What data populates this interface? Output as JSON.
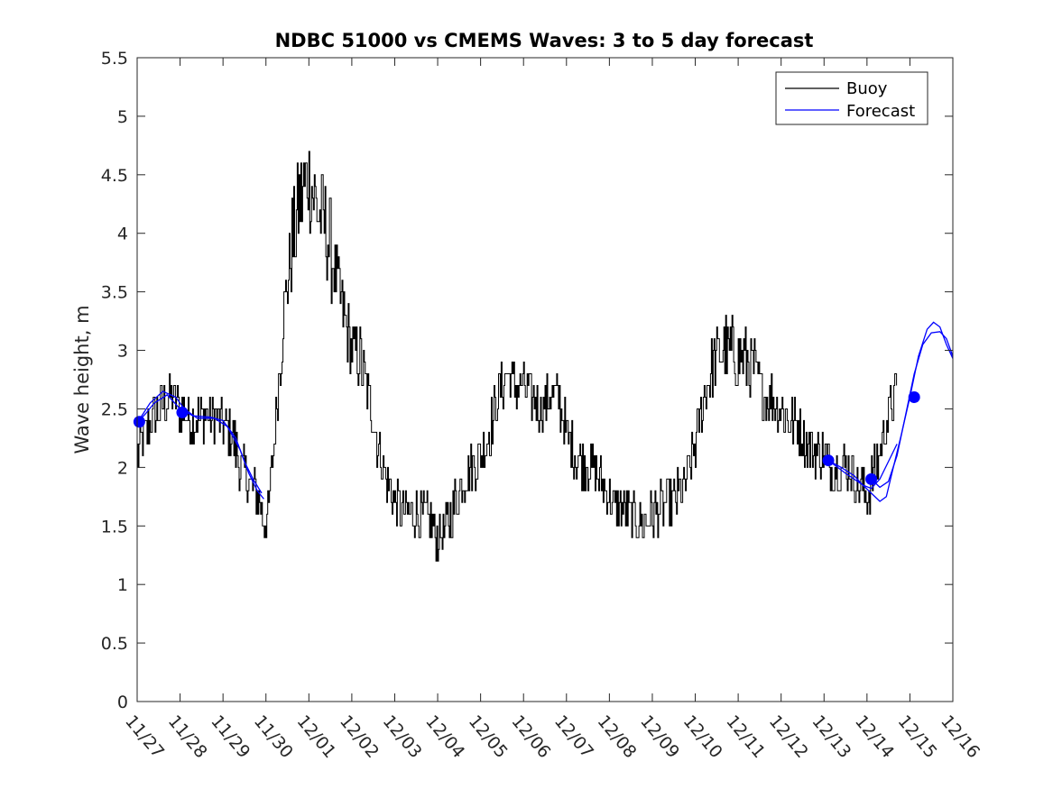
{
  "chart_data": {
    "type": "line",
    "title": "NDBC 51000 vs CMEMS Waves: 3 to 5 day forecast",
    "xlabel": "",
    "ylabel": "Wave height, m",
    "xlim": [
      0,
      19
    ],
    "ylim": [
      0,
      5.5
    ],
    "grid": false,
    "legend_position": "top-right",
    "x_ticks": [
      0,
      1,
      2,
      3,
      4,
      5,
      6,
      7,
      8,
      9,
      10,
      11,
      12,
      13,
      14,
      15,
      16,
      17,
      18,
      19
    ],
    "x_tick_labels": [
      "11/27",
      "11/28",
      "11/29",
      "11/30",
      "12/01",
      "12/02",
      "12/03",
      "12/04",
      "12/05",
      "12/06",
      "12/07",
      "12/08",
      "12/09",
      "12/10",
      "12/11",
      "12/12",
      "12/13",
      "12/14",
      "12/15",
      "12/16"
    ],
    "y_ticks": [
      0,
      0.5,
      1,
      1.5,
      2,
      2.5,
      3,
      3.5,
      4,
      4.5,
      5,
      5.5
    ],
    "y_tick_labels": [
      "0",
      "0.5",
      "1",
      "1.5",
      "2",
      "2.5",
      "3",
      "3.5",
      "4",
      "4.5",
      "5",
      "5.5"
    ],
    "series": [
      {
        "name": "Buoy",
        "color": "#000000",
        "anchors": [
          [
            0.0,
            2.1
          ],
          [
            0.2,
            2.3
          ],
          [
            0.5,
            2.5
          ],
          [
            0.8,
            2.6
          ],
          [
            1.0,
            2.5
          ],
          [
            1.3,
            2.4
          ],
          [
            1.6,
            2.45
          ],
          [
            1.9,
            2.4
          ],
          [
            2.2,
            2.3
          ],
          [
            2.4,
            2.0
          ],
          [
            2.6,
            1.9
          ],
          [
            2.8,
            1.75
          ],
          [
            2.95,
            1.55
          ],
          [
            3.05,
            1.6
          ],
          [
            3.2,
            2.3
          ],
          [
            3.4,
            3.3
          ],
          [
            3.6,
            3.9
          ],
          [
            3.8,
            4.3
          ],
          [
            4.0,
            4.5
          ],
          [
            4.2,
            4.2
          ],
          [
            4.4,
            4.0
          ],
          [
            4.6,
            3.7
          ],
          [
            4.8,
            3.3
          ],
          [
            5.0,
            3.0
          ],
          [
            5.2,
            2.9
          ],
          [
            5.4,
            2.6
          ],
          [
            5.6,
            2.2
          ],
          [
            5.8,
            1.9
          ],
          [
            6.0,
            1.7
          ],
          [
            6.2,
            1.6
          ],
          [
            6.4,
            1.6
          ],
          [
            6.6,
            1.6
          ],
          [
            6.8,
            1.55
          ],
          [
            7.0,
            1.4
          ],
          [
            7.2,
            1.5
          ],
          [
            7.4,
            1.7
          ],
          [
            7.6,
            1.9
          ],
          [
            7.8,
            2.0
          ],
          [
            8.0,
            2.1
          ],
          [
            8.2,
            2.3
          ],
          [
            8.4,
            2.6
          ],
          [
            8.6,
            2.8
          ],
          [
            8.8,
            2.7
          ],
          [
            9.0,
            2.7
          ],
          [
            9.2,
            2.6
          ],
          [
            9.4,
            2.5
          ],
          [
            9.6,
            2.6
          ],
          [
            9.8,
            2.6
          ],
          [
            10.0,
            2.3
          ],
          [
            10.2,
            2.1
          ],
          [
            10.4,
            2.05
          ],
          [
            10.6,
            2.0
          ],
          [
            10.8,
            1.9
          ],
          [
            11.0,
            1.75
          ],
          [
            11.2,
            1.65
          ],
          [
            11.4,
            1.6
          ],
          [
            11.6,
            1.55
          ],
          [
            11.8,
            1.5
          ],
          [
            12.0,
            1.6
          ],
          [
            12.2,
            1.65
          ],
          [
            12.4,
            1.7
          ],
          [
            12.6,
            1.75
          ],
          [
            12.8,
            1.9
          ],
          [
            13.0,
            2.2
          ],
          [
            13.2,
            2.6
          ],
          [
            13.4,
            2.9
          ],
          [
            13.6,
            3.0
          ],
          [
            13.8,
            3.0
          ],
          [
            14.0,
            2.95
          ],
          [
            14.2,
            2.9
          ],
          [
            14.4,
            2.8
          ],
          [
            14.6,
            2.6
          ],
          [
            14.8,
            2.6
          ],
          [
            15.0,
            2.5
          ],
          [
            15.2,
            2.4
          ],
          [
            15.4,
            2.35
          ],
          [
            15.6,
            2.2
          ],
          [
            15.8,
            2.15
          ],
          [
            16.0,
            2.1
          ],
          [
            16.2,
            2.0
          ],
          [
            16.4,
            2.0
          ],
          [
            16.6,
            2.0
          ],
          [
            16.8,
            1.85
          ],
          [
            17.0,
            1.75
          ],
          [
            17.2,
            2.0
          ],
          [
            17.4,
            2.3
          ],
          [
            17.6,
            2.6
          ],
          [
            17.7,
            2.65
          ]
        ]
      },
      {
        "name": "Forecast",
        "color": "#0000ff",
        "segments": [
          [
            [
              0.0,
              2.38
            ],
            [
              0.3,
              2.55
            ],
            [
              0.6,
              2.65
            ],
            [
              0.9,
              2.6
            ],
            [
              1.1,
              2.5
            ],
            [
              1.4,
              2.42
            ],
            [
              1.8,
              2.42
            ],
            [
              2.1,
              2.35
            ],
            [
              2.4,
              2.15
            ],
            [
              2.6,
              1.95
            ],
            [
              2.8,
              1.8
            ],
            [
              2.95,
              1.73
            ]
          ],
          [
            [
              0.0,
              2.38
            ],
            [
              0.2,
              2.46
            ],
            [
              0.4,
              2.55
            ],
            [
              0.7,
              2.62
            ],
            [
              1.0,
              2.5
            ],
            [
              1.3,
              2.44
            ],
            [
              1.7,
              2.43
            ],
            [
              2.0,
              2.4
            ],
            [
              2.3,
              2.25
            ],
            [
              2.5,
              2.05
            ],
            [
              2.7,
              1.9
            ],
            [
              2.9,
              1.78
            ]
          ],
          [
            [
              16.1,
              2.06
            ],
            [
              16.5,
              1.95
            ],
            [
              16.9,
              1.85
            ],
            [
              17.1,
              1.82
            ],
            [
              17.3,
              1.9
            ],
            [
              17.5,
              2.05
            ],
            [
              17.7,
              2.2
            ]
          ],
          [
            [
              16.1,
              2.06
            ],
            [
              16.4,
              2.0
            ],
            [
              16.7,
              1.93
            ],
            [
              16.9,
              1.85
            ],
            [
              17.1,
              1.78
            ],
            [
              17.3,
              1.71
            ],
            [
              17.45,
              1.75
            ],
            [
              17.6,
              1.98
            ],
            [
              17.8,
              2.28
            ],
            [
              18.0,
              2.6
            ],
            [
              18.2,
              2.95
            ],
            [
              18.4,
              3.18
            ],
            [
              18.55,
              3.24
            ],
            [
              18.7,
              3.2
            ],
            [
              18.85,
              3.05
            ],
            [
              19.0,
              2.93
            ]
          ],
          [
            [
              17.1,
              1.9
            ],
            [
              17.3,
              1.83
            ],
            [
              17.5,
              1.88
            ],
            [
              17.7,
              2.1
            ],
            [
              17.9,
              2.45
            ],
            [
              18.1,
              2.8
            ],
            [
              18.3,
              3.05
            ],
            [
              18.5,
              3.15
            ],
            [
              18.7,
              3.16
            ],
            [
              18.85,
              3.1
            ],
            [
              19.0,
              2.95
            ]
          ]
        ]
      },
      {
        "name": "Forecast start points",
        "color": "#0000ff",
        "points": [
          [
            0.05,
            2.39
          ],
          [
            1.05,
            2.47
          ],
          [
            16.1,
            2.06
          ],
          [
            17.1,
            1.9
          ],
          [
            18.1,
            2.6
          ]
        ]
      }
    ],
    "legend": [
      "Buoy",
      "Forecast"
    ]
  }
}
